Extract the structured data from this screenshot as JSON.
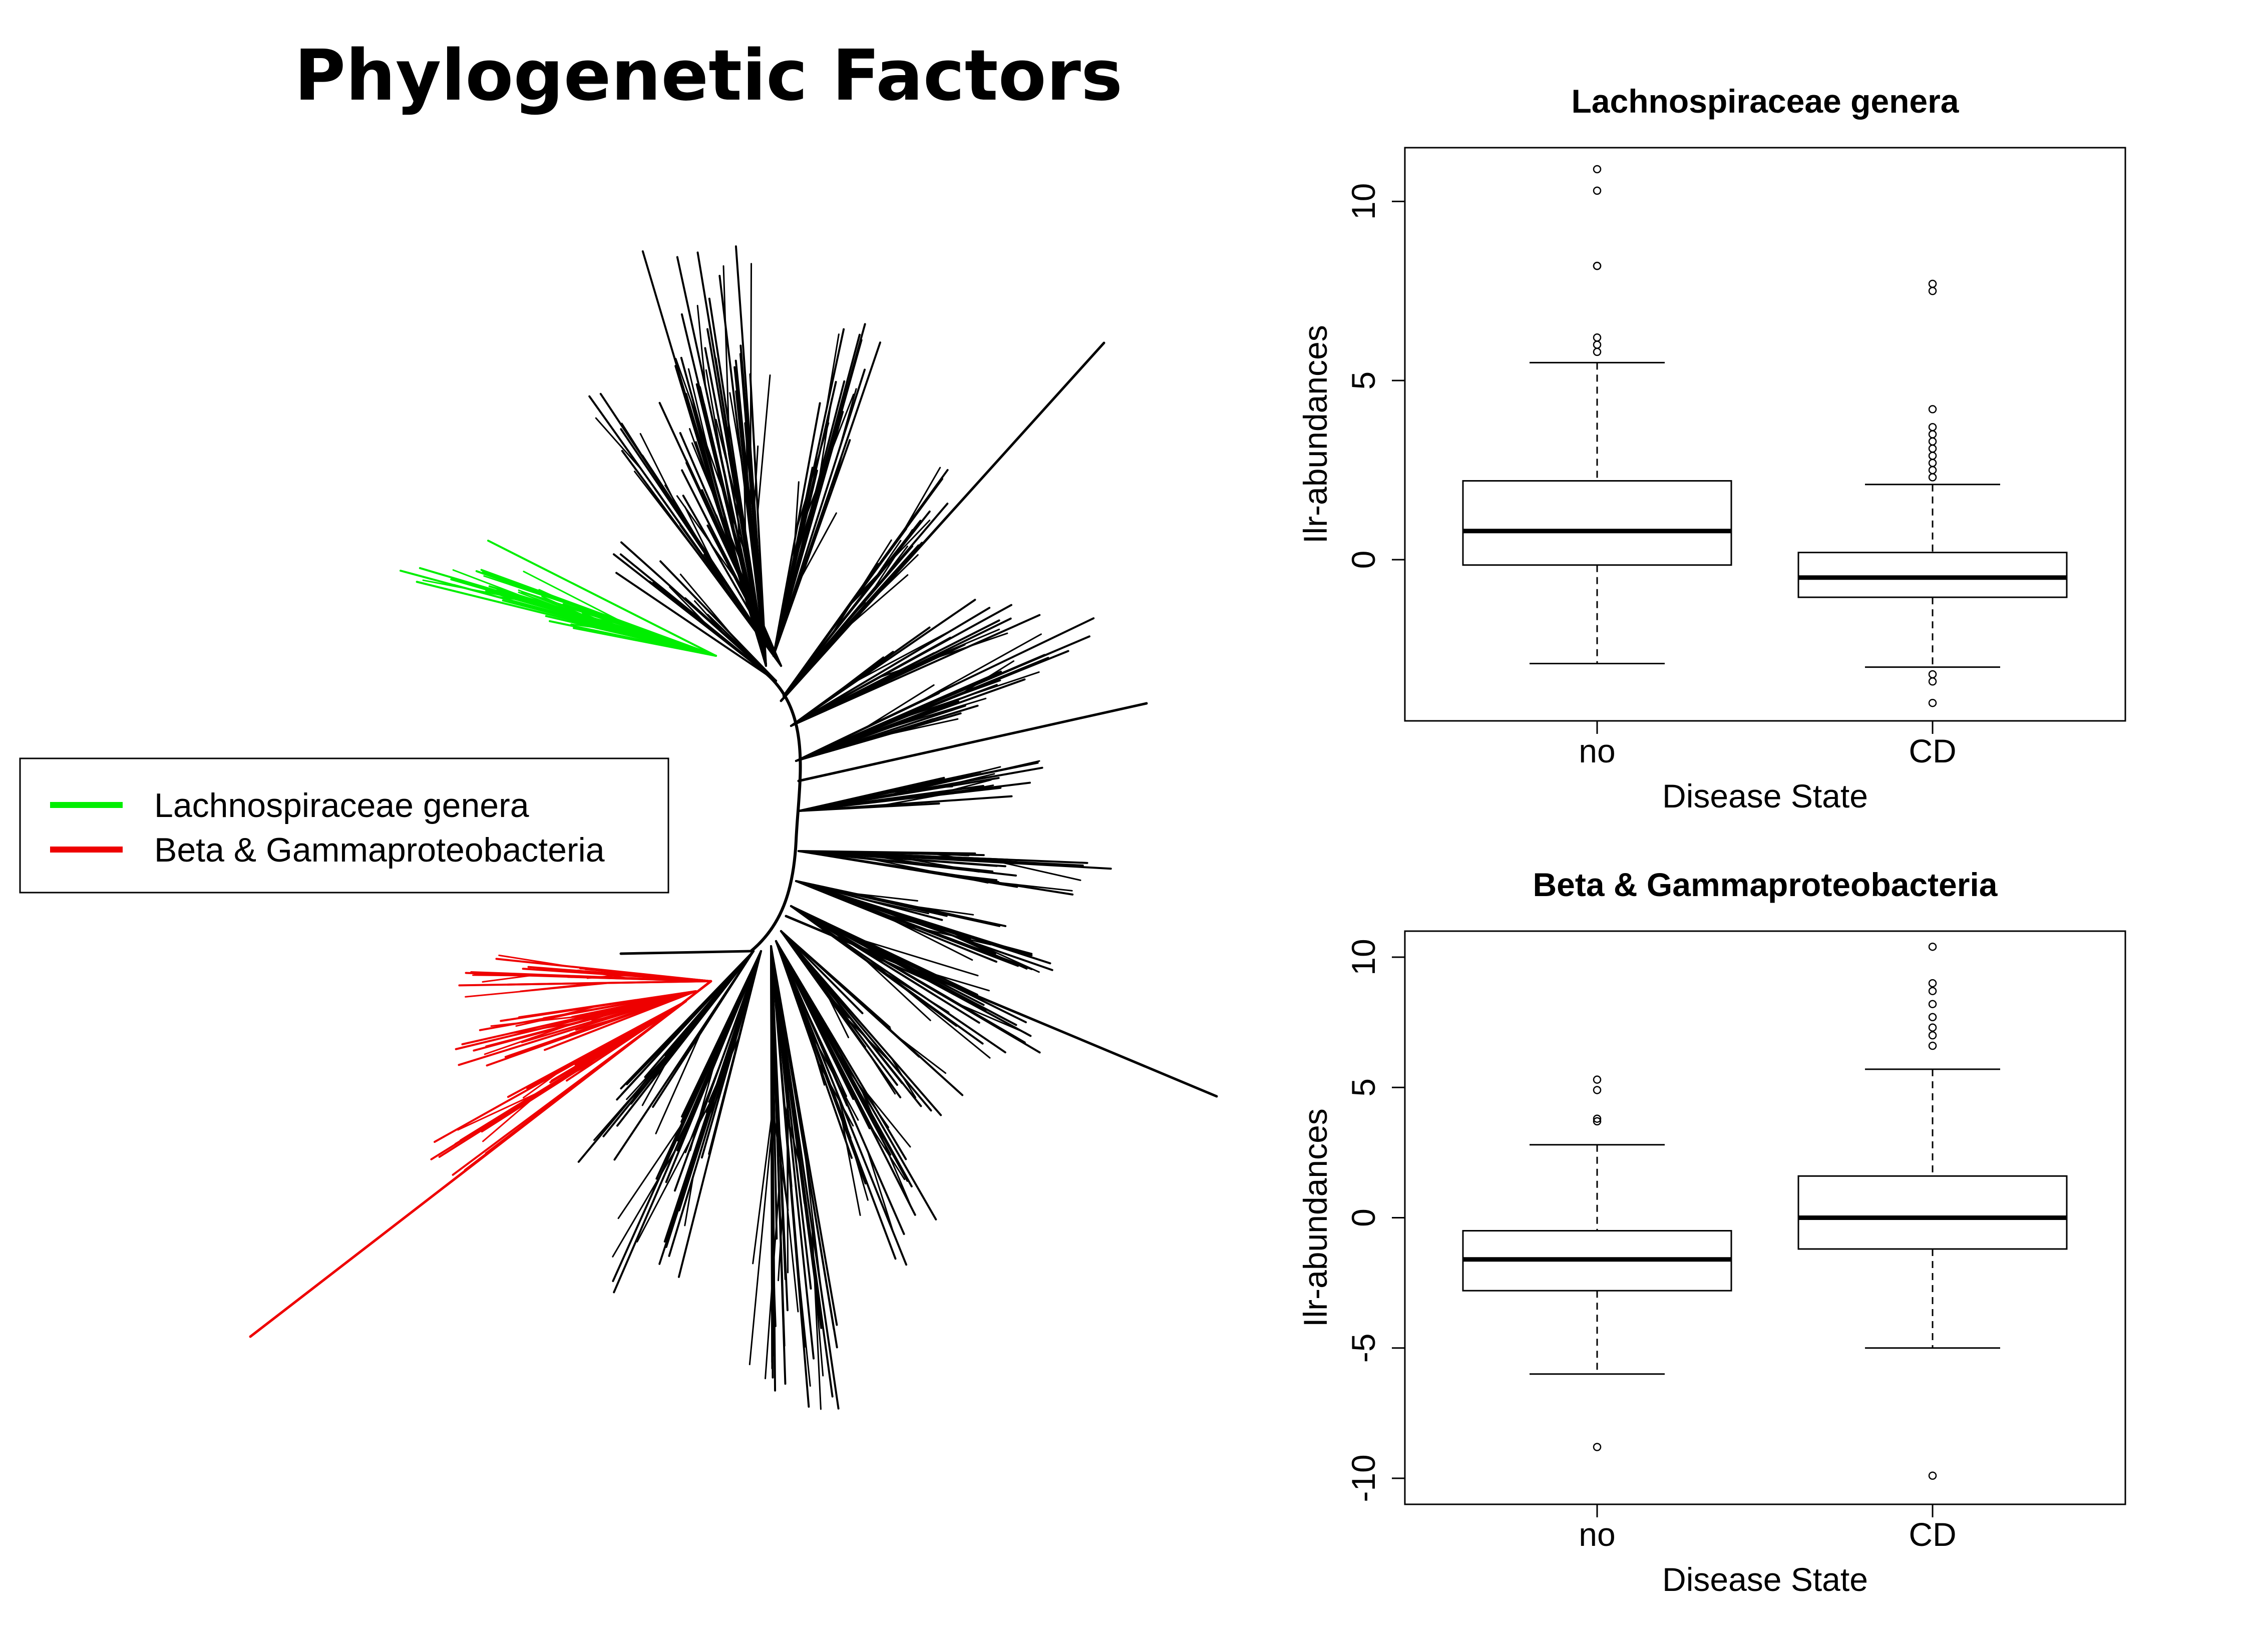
{
  "page_title": "Phylogenetic Factors",
  "legend": {
    "items": [
      {
        "label": "Lachnospiraceae genera",
        "color": "#00ee00"
      },
      {
        "label": "Beta & Gammaproteobacteria",
        "color": "#ee0000"
      }
    ]
  },
  "chart_data": [
    {
      "type": "boxplot",
      "title": "Lachnospiraceae genera",
      "xlabel": "Disease State",
      "ylabel": "Ilr-abundances",
      "categories": [
        "no",
        "CD"
      ],
      "ylim": [
        -4.5,
        11.5
      ],
      "yticks": [
        0,
        5,
        10
      ],
      "boxes": [
        {
          "category": "no",
          "whisker_low": -2.9,
          "q1": -0.15,
          "median": 0.8,
          "q3": 2.2,
          "whisker_high": 5.5,
          "outliers": [
            10.9,
            10.3,
            8.2,
            8.2,
            6.2,
            6.0,
            5.8
          ]
        },
        {
          "category": "CD",
          "whisker_low": -3.0,
          "q1": -1.05,
          "median": -0.5,
          "q3": 0.2,
          "whisker_high": 2.1,
          "outliers": [
            7.7,
            7.5,
            4.2,
            3.7,
            3.5,
            3.3,
            3.1,
            2.9,
            2.7,
            2.5,
            2.3,
            -3.2,
            -3.4,
            -4.0
          ]
        }
      ]
    },
    {
      "type": "boxplot",
      "title": "Beta & Gammaproteobacteria",
      "xlabel": "Disease State",
      "ylabel": "Ilr-abundances",
      "categories": [
        "no",
        "CD"
      ],
      "ylim": [
        -11,
        11
      ],
      "yticks": [
        -10,
        -5,
        0,
        5,
        10
      ],
      "boxes": [
        {
          "category": "no",
          "whisker_low": -6.0,
          "q1": -2.8,
          "median": -1.6,
          "q3": -0.5,
          "whisker_high": 2.8,
          "outliers": [
            5.3,
            4.9,
            3.8,
            3.7,
            -8.8
          ]
        },
        {
          "category": "CD",
          "whisker_low": -5.0,
          "q1": -1.2,
          "median": 0.0,
          "q3": 1.6,
          "whisker_high": 5.7,
          "outliers": [
            10.4,
            9.0,
            8.7,
            8.2,
            7.7,
            7.3,
            7.0,
            6.6,
            -9.9
          ]
        }
      ]
    }
  ]
}
